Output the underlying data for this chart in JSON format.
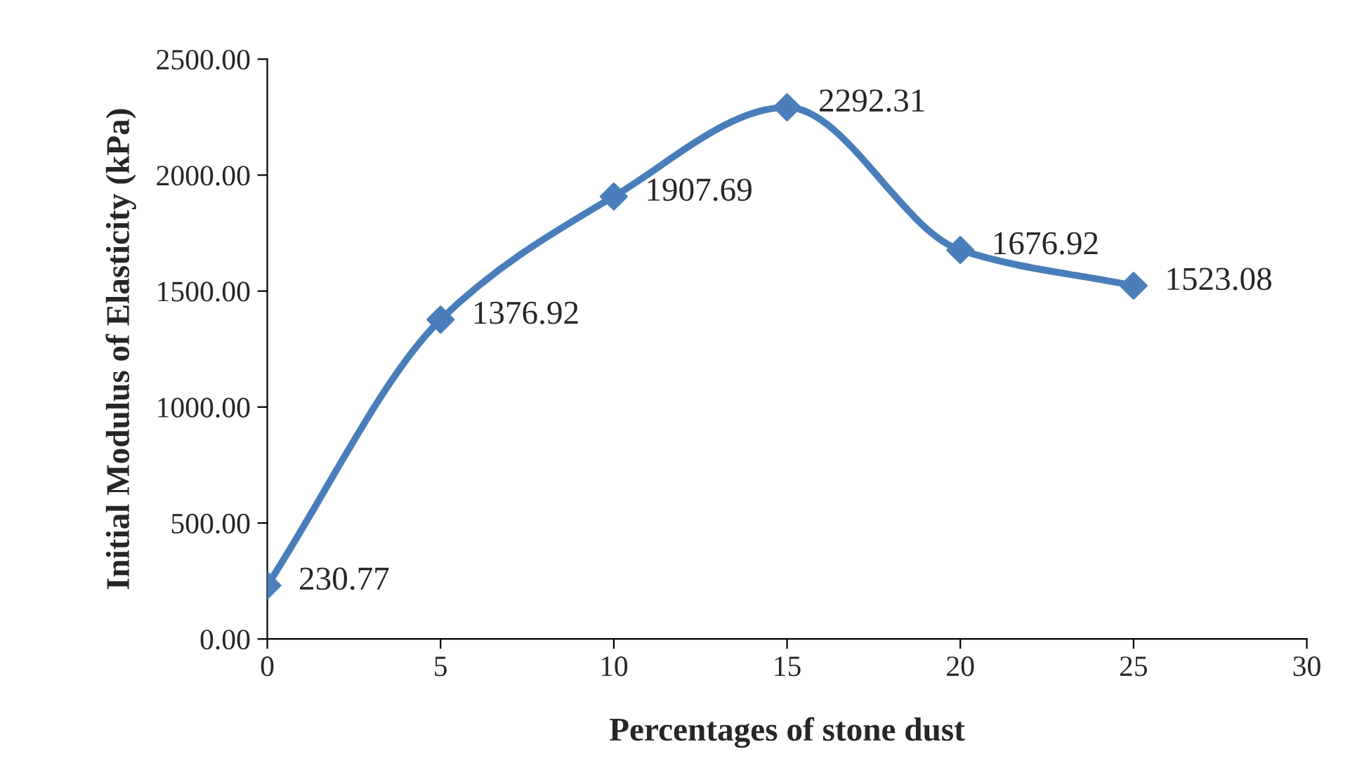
{
  "chart_data": {
    "type": "line",
    "xlabel": "Percentages of stone dust",
    "ylabel": "Initial Modulus of Elasticity (kPa)",
    "x": [
      0,
      5,
      10,
      15,
      20,
      25
    ],
    "series": [
      {
        "color": "#4a7ebb",
        "values": [
          230.77,
          1376.92,
          1907.69,
          2292.31,
          1676.92,
          1523.08
        ]
      }
    ],
    "data_labels": true,
    "marker": "diamond",
    "line_style": "solid",
    "xlim": [
      0,
      30
    ],
    "xticks": [
      0,
      5,
      10,
      15,
      20,
      25,
      30
    ],
    "ylim": [
      0,
      2500
    ],
    "yticks": [
      {
        "value": 0,
        "label": "0.00"
      },
      {
        "value": 500,
        "label": "500.00"
      },
      {
        "value": 1000,
        "label": "1000.00"
      },
      {
        "value": 1500,
        "label": "1500.00"
      },
      {
        "value": 2000,
        "label": "2000.00"
      },
      {
        "value": 2500,
        "label": "2500.00"
      }
    ],
    "grid": false,
    "legend": false
  }
}
